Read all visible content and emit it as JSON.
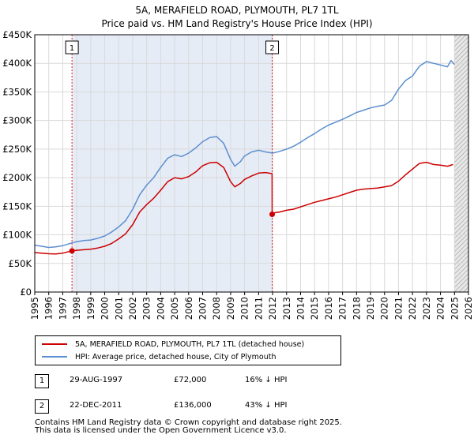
{
  "chart_data": {
    "type": "line",
    "title": "5A, MERAFIELD ROAD, PLYMOUTH, PL7 1TL",
    "subtitle": "Price paid vs. HM Land Registry's House Price Index (HPI)",
    "xlabel": "",
    "ylabel": "",
    "xlim": [
      1995,
      2026
    ],
    "ylim": [
      0,
      450000
    ],
    "y_ticks": [
      0,
      50000,
      100000,
      150000,
      200000,
      250000,
      300000,
      350000,
      400000,
      450000
    ],
    "y_tick_labels": [
      "£0",
      "£50K",
      "£100K",
      "£150K",
      "£200K",
      "£250K",
      "£300K",
      "£350K",
      "£400K",
      "£450K"
    ],
    "x_ticks": [
      1995,
      1996,
      1997,
      1998,
      1999,
      2000,
      2001,
      2002,
      2003,
      2004,
      2005,
      2006,
      2007,
      2008,
      2009,
      2010,
      2011,
      2012,
      2013,
      2014,
      2015,
      2016,
      2017,
      2018,
      2019,
      2020,
      2021,
      2022,
      2023,
      2024,
      2025,
      2026
    ],
    "x_tick_labels": [
      "1995",
      "1996",
      "1997",
      "1998",
      "1999",
      "2000",
      "2001",
      "2002",
      "2003",
      "2004",
      "2005",
      "2006",
      "2007",
      "2008",
      "2009",
      "2010",
      "2011",
      "2012",
      "2013",
      "2014",
      "2015",
      "2016",
      "2017",
      "2018",
      "2019",
      "2020",
      "2021",
      "2022",
      "2023",
      "2024",
      "2025",
      "2026"
    ],
    "grid": true,
    "shaded_range": [
      1997.66,
      2011.97
    ],
    "hatched_from": 2025.0,
    "series": [
      {
        "name": "5A, MERAFIELD ROAD, PLYMOUTH, PL7 1TL (detached house)",
        "color": "#cc0000",
        "x": [
          1995.0,
          1995.5,
          1996.0,
          1996.5,
          1997.0,
          1997.66,
          1998.0,
          1998.5,
          1999.0,
          1999.5,
          2000.0,
          2000.5,
          2001.0,
          2001.5,
          2002.0,
          2002.5,
          2003.0,
          2003.5,
          2004.0,
          2004.5,
          2005.0,
          2005.5,
          2006.0,
          2006.5,
          2007.0,
          2007.5,
          2008.0,
          2008.5,
          2009.0,
          2009.3,
          2009.7,
          2010.0,
          2010.5,
          2011.0,
          2011.5,
          2011.96,
          2011.97,
          2012.0,
          2012.5,
          2013.0,
          2013.5,
          2014.0,
          2014.5,
          2015.0,
          2015.5,
          2016.0,
          2016.5,
          2017.0,
          2017.5,
          2018.0,
          2018.5,
          2019.0,
          2019.5,
          2020.0,
          2020.5,
          2021.0,
          2021.5,
          2022.0,
          2022.5,
          2023.0,
          2023.5,
          2024.0,
          2024.5,
          2024.9
        ],
        "values": [
          69000,
          68000,
          67000,
          66500,
          68000,
          72000,
          73000,
          74000,
          75000,
          77000,
          80000,
          85000,
          93000,
          102000,
          118000,
          140000,
          153000,
          164000,
          178000,
          193000,
          200000,
          198000,
          202000,
          210000,
          221000,
          226000,
          227000,
          218000,
          193000,
          184000,
          190000,
          197000,
          203000,
          208000,
          209000,
          207000,
          136000,
          138000,
          140000,
          143000,
          145000,
          149000,
          153000,
          157000,
          160000,
          163000,
          166000,
          170000,
          174000,
          178000,
          180000,
          181000,
          182000,
          184000,
          186000,
          194000,
          205000,
          215000,
          225000,
          227000,
          223000,
          222000,
          220000,
          223000
        ]
      },
      {
        "name": "HPI: Average price, detached house, City of Plymouth",
        "color": "#5b8fd0",
        "x": [
          1995.0,
          1995.5,
          1996.0,
          1996.5,
          1997.0,
          1997.66,
          1998.0,
          1998.5,
          1999.0,
          1999.5,
          2000.0,
          2000.5,
          2001.0,
          2001.5,
          2002.0,
          2002.5,
          2003.0,
          2003.5,
          2004.0,
          2004.5,
          2005.0,
          2005.5,
          2006.0,
          2006.5,
          2007.0,
          2007.5,
          2008.0,
          2008.5,
          2009.0,
          2009.3,
          2009.7,
          2010.0,
          2010.5,
          2011.0,
          2011.5,
          2012.0,
          2012.5,
          2013.0,
          2013.5,
          2014.0,
          2014.5,
          2015.0,
          2015.5,
          2016.0,
          2016.5,
          2017.0,
          2017.5,
          2018.0,
          2018.5,
          2019.0,
          2019.5,
          2020.0,
          2020.5,
          2021.0,
          2021.5,
          2022.0,
          2022.5,
          2023.0,
          2023.5,
          2024.0,
          2024.5,
          2024.75,
          2025.0
        ],
        "values": [
          82000,
          80000,
          78000,
          79000,
          81000,
          86000,
          88000,
          90000,
          91000,
          94000,
          98000,
          105000,
          114000,
          125000,
          145000,
          170000,
          187000,
          200000,
          218000,
          234000,
          240000,
          237000,
          243000,
          252000,
          263000,
          270000,
          272000,
          260000,
          232000,
          220000,
          228000,
          238000,
          245000,
          248000,
          245000,
          243000,
          246000,
          250000,
          255000,
          262000,
          270000,
          277000,
          285000,
          292000,
          297000,
          302000,
          308000,
          314000,
          318000,
          322000,
          325000,
          327000,
          335000,
          355000,
          370000,
          378000,
          395000,
          403000,
          400000,
          397000,
          394000,
          405000,
          398000
        ]
      }
    ],
    "markers": [
      {
        "label": "1",
        "x": 1997.66,
        "y": 72000
      },
      {
        "label": "2",
        "x": 2011.97,
        "y": 136000
      }
    ]
  },
  "legend": {
    "items": [
      {
        "label": "5A, MERAFIELD ROAD, PLYMOUTH, PL7 1TL (detached house)",
        "color": "#cc0000"
      },
      {
        "label": "HPI: Average price, detached house, City of Plymouth",
        "color": "#5b8fd0"
      }
    ]
  },
  "sales": [
    {
      "num": "1",
      "date": "29-AUG-1997",
      "price": "£72,000",
      "hpi": "16% ↓ HPI"
    },
    {
      "num": "2",
      "date": "22-DEC-2011",
      "price": "£136,000",
      "hpi": "43% ↓ HPI"
    }
  ],
  "footer": {
    "line1": "Contains HM Land Registry data © Crown copyright and database right 2025.",
    "line2": "This data is licensed under the Open Government Licence v3.0."
  }
}
